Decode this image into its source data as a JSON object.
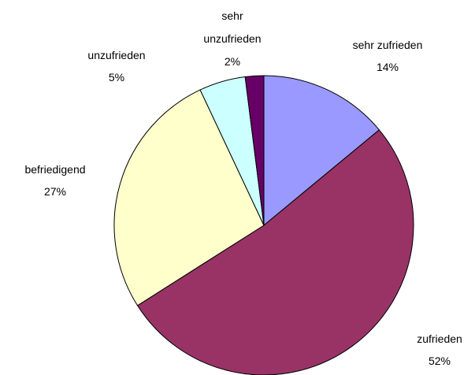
{
  "chart_data": {
    "type": "pie",
    "categories": [
      "sehr zufrieden",
      "zufrieden",
      "befriedigend",
      "unzufrieden",
      "sehr unzufrieden"
    ],
    "values": [
      14,
      52,
      27,
      5,
      2
    ],
    "value_labels": [
      "14%",
      "52%",
      "27%",
      "5%",
      "2%"
    ],
    "colors": [
      "#9999ff",
      "#993366",
      "#ffffcc",
      "#ccffff",
      "#660066"
    ]
  }
}
